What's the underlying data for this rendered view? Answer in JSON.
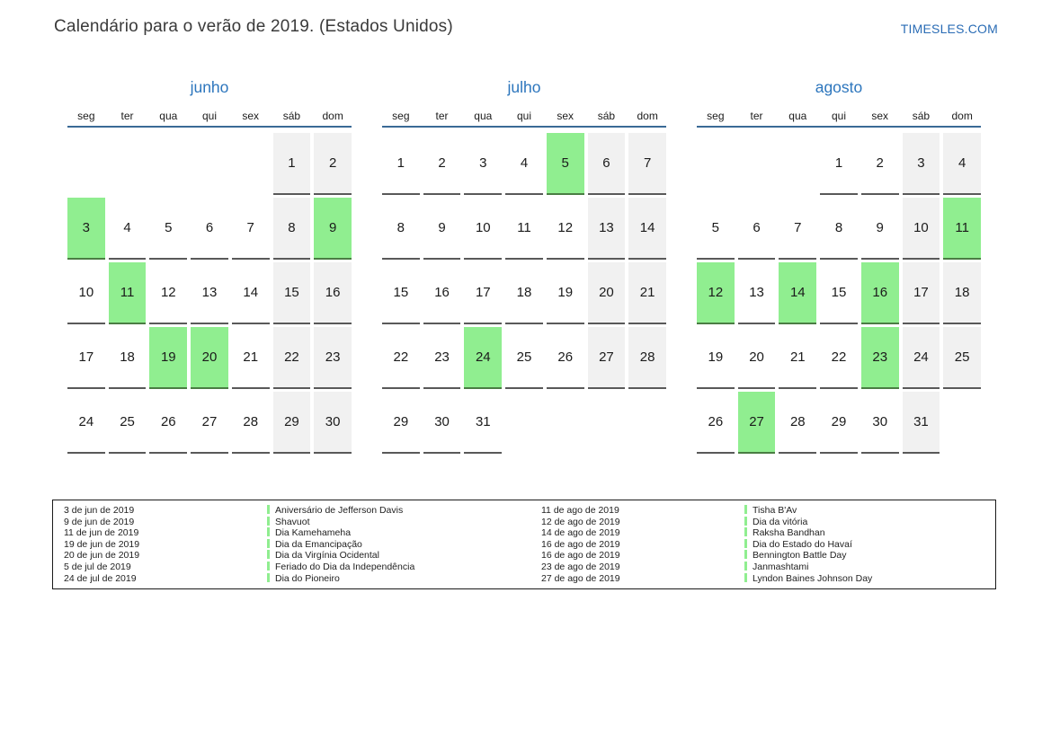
{
  "page": {
    "title": "Calendário para o verão de 2019. (Estados Unidos)",
    "site": "TIMESLES.COM"
  },
  "colors": {
    "highlight_green": "#90ee90",
    "highlight_border": "#4a7d43",
    "weekend_gray": "#f1f1f1",
    "cell_border_gray": "#595959",
    "header_line_blue": "#3a6a96",
    "month_title_blue": "#2d76bd",
    "site_link_blue": "#2a6cb5"
  },
  "calendar": {
    "weekdays": [
      "seg",
      "ter",
      "qua",
      "qui",
      "sex",
      "sáb",
      "dom"
    ],
    "months": [
      {
        "name": "junho",
        "weeks": [
          [
            null,
            null,
            null,
            null,
            null,
            1,
            2
          ],
          [
            3,
            4,
            5,
            6,
            7,
            8,
            9
          ],
          [
            10,
            11,
            12,
            13,
            14,
            15,
            16
          ],
          [
            17,
            18,
            19,
            20,
            21,
            22,
            23
          ],
          [
            24,
            25,
            26,
            27,
            28,
            29,
            30
          ]
        ],
        "highlighted": [
          3,
          9,
          11,
          19,
          20
        ]
      },
      {
        "name": "julho",
        "weeks": [
          [
            1,
            2,
            3,
            4,
            5,
            6,
            7
          ],
          [
            8,
            9,
            10,
            11,
            12,
            13,
            14
          ],
          [
            15,
            16,
            17,
            18,
            19,
            20,
            21
          ],
          [
            22,
            23,
            24,
            25,
            26,
            27,
            28
          ],
          [
            29,
            30,
            31,
            null,
            null,
            null,
            null
          ]
        ],
        "highlighted": [
          5,
          24
        ]
      },
      {
        "name": "agosto",
        "weeks": [
          [
            null,
            null,
            null,
            1,
            2,
            3,
            4
          ],
          [
            5,
            6,
            7,
            8,
            9,
            10,
            11
          ],
          [
            12,
            13,
            14,
            15,
            16,
            17,
            18
          ],
          [
            19,
            20,
            21,
            22,
            23,
            24,
            25
          ],
          [
            26,
            27,
            28,
            29,
            30,
            31,
            null
          ]
        ],
        "highlighted": [
          11,
          12,
          14,
          16,
          23,
          27
        ]
      }
    ]
  },
  "legend": {
    "columns": [
      {
        "entries": [
          {
            "date": "3 de jun de 2019",
            "name": "Aniversário de Jefferson Davis"
          },
          {
            "date": "9 de jun de 2019",
            "name": "Shavuot"
          },
          {
            "date": "11 de jun de 2019",
            "name": "Dia Kamehameha"
          },
          {
            "date": "19 de jun de 2019",
            "name": "Dia da Emancipação"
          },
          {
            "date": "20 de jun de 2019",
            "name": "Dia da Virgínia Ocidental"
          },
          {
            "date": "5 de jul de 2019",
            "name": "Feriado do Dia da Independência"
          },
          {
            "date": "24 de jul de 2019",
            "name": "Dia do Pioneiro"
          }
        ]
      },
      {
        "entries": [
          {
            "date": "11 de ago de 2019",
            "name": "Tisha B'Av"
          },
          {
            "date": "12 de ago de 2019",
            "name": "Dia da vitória"
          },
          {
            "date": "14 de ago de 2019",
            "name": "Raksha Bandhan"
          },
          {
            "date": "16 de ago de 2019",
            "name": "Dia do Estado do Havaí"
          },
          {
            "date": "16 de ago de 2019",
            "name": "Bennington Battle Day"
          },
          {
            "date": "23 de ago de 2019",
            "name": "Janmashtami"
          },
          {
            "date": "27 de ago de 2019",
            "name": "Lyndon Baines Johnson Day"
          }
        ]
      }
    ]
  }
}
